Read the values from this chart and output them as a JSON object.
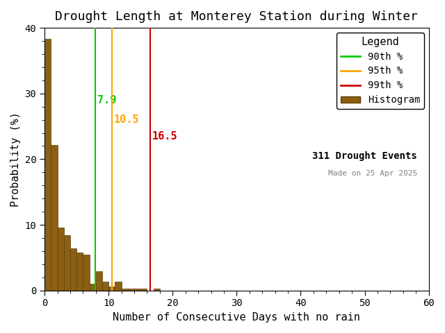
{
  "title": "Drought Length at Monterey Station during Winter",
  "xlabel": "Number of Consecutive Days with no rain",
  "ylabel": "Probability (%)",
  "xlim": [
    0,
    60
  ],
  "ylim": [
    0,
    40
  ],
  "xticks": [
    0,
    10,
    20,
    30,
    40,
    50,
    60
  ],
  "yticks": [
    0,
    10,
    20,
    30,
    40
  ],
  "bar_color": "#8B6014",
  "bar_edge_color": "#5C3D00",
  "percentile_90": 7.9,
  "percentile_95": 10.5,
  "percentile_99": 16.5,
  "percentile_90_color": "#00CC00",
  "percentile_95_color": "#FFA500",
  "percentile_99_color": "#CC0000",
  "n_events": 311,
  "made_on": "Made on 25 Apr 2025",
  "legend_title": "Legend",
  "bar_heights": [
    38.3,
    22.2,
    9.6,
    8.4,
    6.4,
    5.8,
    5.5,
    1.0,
    2.9,
    1.3,
    0.6,
    1.3,
    0.3,
    0.3,
    0.3,
    0.3,
    0.0,
    0.3,
    0.0,
    0.0,
    0.0,
    0.0,
    0.0,
    0.0,
    0.0,
    0.0,
    0.0,
    0.0,
    0.0,
    0.0,
    0.0,
    0.0,
    0.0,
    0.0,
    0.0,
    0.0,
    0.0,
    0.0,
    0.0,
    0.0,
    0.0,
    0.0,
    0.0,
    0.0,
    0.0,
    0.0,
    0.0,
    0.0,
    0.0,
    0.0,
    0.0,
    0.0,
    0.0,
    0.0,
    0.0,
    0.0,
    0.0,
    0.0,
    0.0,
    0.0
  ],
  "background_color": "#ffffff",
  "title_fontsize": 13,
  "axis_fontsize": 11,
  "tick_fontsize": 10,
  "legend_fontsize": 10
}
